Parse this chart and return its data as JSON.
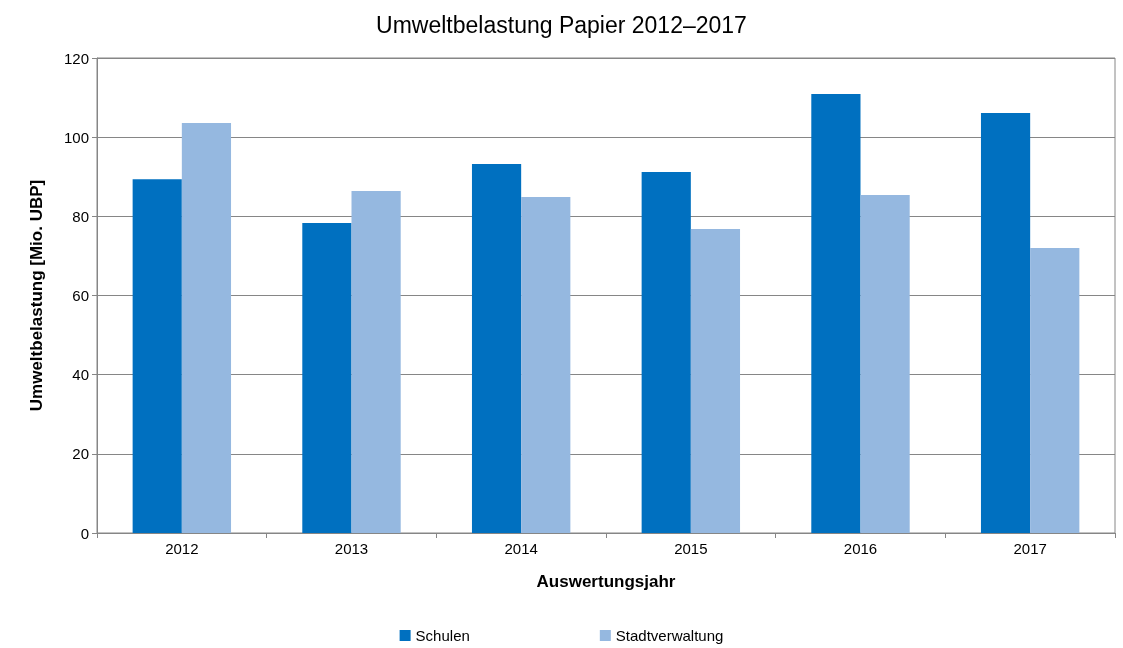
{
  "chart_data": {
    "type": "bar",
    "title": "Umweltbelastung Papier 2012–2017",
    "xlabel": "Auswertungsjahr",
    "ylabel": "Umweltbelastung [Mio. UBP]",
    "categories": [
      "2012",
      "2013",
      "2014",
      "2015",
      "2016",
      "2017"
    ],
    "series": [
      {
        "name": "Schulen",
        "color": "#0070c0",
        "values": [
          89.4,
          78.3,
          93.2,
          91.2,
          110.9,
          106.1
        ]
      },
      {
        "name": "Stadtverwaltung",
        "color": "#95b8e0",
        "values": [
          103.6,
          86.4,
          84.9,
          76.8,
          85.4,
          72.0
        ]
      }
    ],
    "ylim": [
      0,
      120
    ],
    "yticks": [
      0,
      20,
      40,
      60,
      80,
      100,
      120
    ],
    "grid": "y",
    "legend": "bottom"
  }
}
